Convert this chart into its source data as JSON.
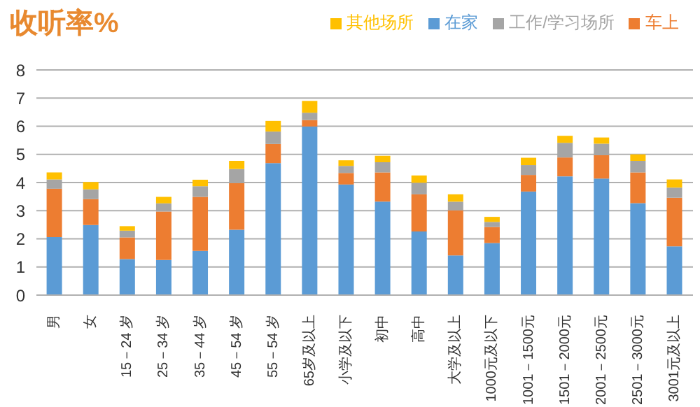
{
  "chart_data": {
    "type": "bar",
    "title": "收听率%",
    "stacked": true,
    "grid": "y",
    "legend": "top right",
    "categories": [
      "男",
      "女",
      "15－24 岁",
      "25－34 岁",
      "35－44 岁",
      "45－54 岁",
      "55－54 岁",
      "65岁及以上",
      "小学及以下",
      "初中",
      "高中",
      "大学及以上",
      "1000元及以下",
      "1001－1500元",
      "1501－2000元",
      "2001－2500元",
      "2501－3000元",
      "3001元及以上"
    ],
    "ylim": [
      0,
      8
    ],
    "yticks": [
      0,
      1,
      2,
      3,
      4,
      5,
      6,
      7,
      8
    ],
    "series": [
      {
        "name": "在家",
        "color": "#5b9bd5",
        "values": [
          2.06,
          2.49,
          1.28,
          1.25,
          1.57,
          2.32,
          4.69,
          5.99,
          3.93,
          3.32,
          2.26,
          1.41,
          1.85,
          3.68,
          4.22,
          4.14,
          3.27,
          1.73
        ]
      },
      {
        "name": "车上",
        "color": "#ed7d31",
        "values": [
          1.72,
          0.92,
          0.77,
          1.72,
          1.92,
          1.66,
          0.68,
          0.23,
          0.41,
          1.04,
          1.32,
          1.6,
          0.57,
          0.59,
          0.67,
          0.83,
          1.09,
          1.73
        ]
      },
      {
        "name": "工作/学习场所",
        "color": "#a5a5a5",
        "values": [
          0.33,
          0.35,
          0.24,
          0.29,
          0.38,
          0.5,
          0.44,
          0.26,
          0.25,
          0.36,
          0.41,
          0.31,
          0.18,
          0.35,
          0.52,
          0.41,
          0.41,
          0.36
        ]
      },
      {
        "name": "其他场所",
        "color": "#ffc000",
        "values": [
          0.25,
          0.26,
          0.16,
          0.23,
          0.23,
          0.29,
          0.38,
          0.42,
          0.2,
          0.23,
          0.26,
          0.26,
          0.18,
          0.26,
          0.25,
          0.22,
          0.23,
          0.29
        ]
      }
    ]
  }
}
